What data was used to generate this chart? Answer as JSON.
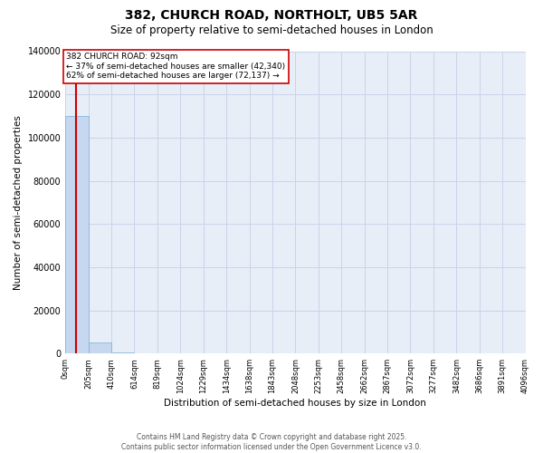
{
  "title": "382, CHURCH ROAD, NORTHOLT, UB5 5AR",
  "subtitle": "Size of property relative to semi-detached houses in London",
  "xlabel": "Distribution of semi-detached houses by size in London",
  "ylabel": "Number of semi-detached properties",
  "property_size": 92,
  "annotation_text_1": "382 CHURCH ROAD: 92sqm",
  "annotation_text_2": "← 37% of semi-detached houses are smaller (42,340)",
  "annotation_text_3": "62% of semi-detached houses are larger (72,137) →",
  "bin_edges": [
    0,
    205,
    410,
    614,
    819,
    1024,
    1229,
    1434,
    1638,
    1843,
    2048,
    2253,
    2458,
    2662,
    2867,
    3072,
    3277,
    3482,
    3686,
    3891,
    4096
  ],
  "bin_counts": [
    110000,
    5000,
    300,
    100,
    50,
    30,
    20,
    15,
    10,
    8,
    6,
    5,
    4,
    3,
    2,
    2,
    1,
    1,
    1,
    1
  ],
  "bar_color": "#c5d8f0",
  "bar_edge_color": "#7aafd4",
  "vline_color": "#cc0000",
  "grid_color": "#c8d4e8",
  "bg_color": "#e8eef8",
  "annotation_box_color": "#cc0000",
  "footer_text": "Contains HM Land Registry data © Crown copyright and database right 2025.\nContains public sector information licensed under the Open Government Licence v3.0.",
  "ylim": [
    0,
    140000
  ],
  "yticks": [
    0,
    20000,
    40000,
    60000,
    80000,
    100000,
    120000,
    140000
  ]
}
